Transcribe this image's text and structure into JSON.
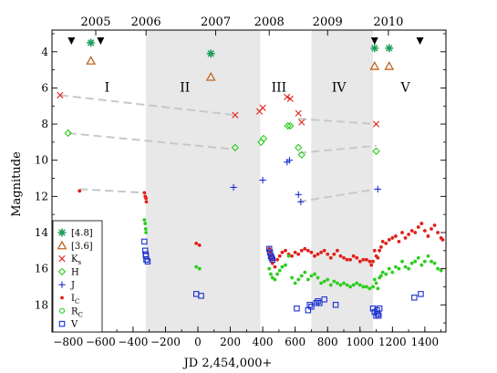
{
  "chart_data": {
    "type": "scatter",
    "xlabel": "JD 2,454,000+",
    "ylabel": "Magnitude",
    "xlim": [
      -900,
      1530
    ],
    "ylim": [
      19.5,
      2.8
    ],
    "y_inverted": true,
    "x_ticks": [
      -800,
      -600,
      -400,
      -200,
      0,
      200,
      400,
      600,
      800,
      1000,
      1200,
      1400
    ],
    "y_ticks": [
      4,
      6,
      8,
      10,
      12,
      14,
      16,
      18
    ],
    "top_axis": {
      "labels": [
        "2005",
        "2006",
        "2007",
        "2008",
        "2009",
        "2010"
      ],
      "positions": [
        -630,
        -320,
        110,
        440,
        800,
        1175
      ]
    },
    "shaded_intervals": [
      [
        -320,
        385
      ],
      [
        700,
        1080
      ]
    ],
    "period_labels": [
      {
        "text": "I",
        "x": -560,
        "y": 6.2
      },
      {
        "text": "II",
        "x": -80,
        "y": 6.2
      },
      {
        "text": "III",
        "x": 500,
        "y": 6.2
      },
      {
        "text": "IV",
        "x": 870,
        "y": 6.2
      },
      {
        "text": "V",
        "x": 1280,
        "y": 6.2
      }
    ],
    "markers_down": [
      -780,
      -600,
      1090,
      1370
    ],
    "trend_segments": [
      {
        "series": "Ks",
        "x": [
          -850,
          230
        ],
        "y": [
          6.4,
          7.5
        ]
      },
      {
        "series": "Ks",
        "x": [
          620,
          1100
        ],
        "y": [
          7.7,
          8.0
        ]
      },
      {
        "series": "H",
        "x": [
          -800,
          230
        ],
        "y": [
          8.5,
          9.4
        ]
      },
      {
        "series": "H",
        "x": [
          620,
          1100
        ],
        "y": [
          9.6,
          9.2
        ]
      },
      {
        "series": "J",
        "x": [
          -730,
          -320
        ],
        "y": [
          11.6,
          11.8
        ]
      },
      {
        "series": "J",
        "x": [
          620,
          1100
        ],
        "y": [
          12.3,
          11.6
        ]
      }
    ],
    "legend": {
      "placement": "bottom-left",
      "entries": [
        {
          "series": "m48",
          "label": "[4.8]"
        },
        {
          "series": "m36",
          "label": "[3.6]"
        },
        {
          "series": "Ks",
          "label": "K",
          "sub": "s"
        },
        {
          "series": "H",
          "label": "H"
        },
        {
          "series": "J",
          "label": "J"
        },
        {
          "series": "Ic",
          "label": "I",
          "sub": "C"
        },
        {
          "series": "Rc",
          "label": "R",
          "sub": "C"
        },
        {
          "series": "V",
          "label": "V"
        }
      ]
    },
    "series": [
      {
        "key": "m48",
        "marker": "asterisk",
        "color": "#1a9e5b",
        "x": [
          -660,
          80,
          1090,
          1180
        ],
        "y": [
          3.5,
          4.1,
          3.8,
          3.8
        ]
      },
      {
        "key": "m36",
        "marker": "triangle",
        "color": "#c0651e",
        "x": [
          -660,
          80,
          1090,
          1180
        ],
        "y": [
          4.5,
          5.4,
          4.8,
          4.8
        ]
      },
      {
        "key": "Ks",
        "marker": "x",
        "color": "#e0201a",
        "x": [
          -850,
          230,
          380,
          400,
          550,
          570,
          620,
          640,
          1100
        ],
        "y": [
          6.4,
          7.5,
          7.3,
          7.1,
          6.5,
          6.6,
          7.4,
          7.9,
          8.0
        ]
      },
      {
        "key": "H",
        "marker": "diamond",
        "color": "#2ccd1e",
        "x": [
          -800,
          230,
          390,
          405,
          555,
          570,
          620,
          640,
          1100
        ],
        "y": [
          8.5,
          9.3,
          9.0,
          8.8,
          8.1,
          8.1,
          9.3,
          9.7,
          9.5
        ]
      },
      {
        "key": "J",
        "marker": "plus",
        "color": "#1a2fd0",
        "x": [
          220,
          400,
          550,
          565,
          620,
          635,
          1110
        ],
        "y": [
          11.5,
          11.1,
          10.1,
          10.0,
          11.9,
          12.3,
          11.6
        ]
      },
      {
        "key": "Ic",
        "marker": "dot",
        "color": "#e0201a",
        "x": [
          -730,
          -330,
          -325,
          -320,
          -318,
          -10,
          10,
          440,
          445,
          450,
          455,
          460,
          475,
          490,
          505,
          520,
          540,
          560,
          580,
          600,
          620,
          640,
          660,
          680,
          700,
          720,
          740,
          760,
          780,
          800,
          820,
          840,
          860,
          880,
          900,
          920,
          940,
          960,
          980,
          1000,
          1020,
          1040,
          1060,
          1070,
          1080,
          1090,
          1100,
          1110,
          1120,
          1130,
          1140,
          1160,
          1180,
          1200,
          1220,
          1240,
          1260,
          1280,
          1300,
          1320,
          1340,
          1360,
          1380,
          1400,
          1420,
          1440,
          1460,
          1480,
          1500,
          1510
        ],
        "y": [
          11.7,
          11.8,
          12.0,
          12.1,
          12.3,
          14.6,
          14.7,
          14.9,
          15.1,
          15.3,
          15.5,
          15.7,
          15.9,
          15.5,
          15.3,
          15.1,
          15.0,
          15.2,
          15.3,
          15.1,
          15.2,
          15.0,
          14.9,
          15.0,
          15.1,
          15.3,
          15.2,
          15.1,
          15.0,
          15.2,
          15.4,
          15.2,
          15.0,
          15.3,
          15.4,
          15.5,
          15.5,
          15.3,
          15.4,
          15.6,
          15.5,
          15.5,
          15.6,
          15.8,
          15.6,
          15.0,
          15.3,
          15.4,
          15.0,
          14.8,
          14.5,
          14.6,
          14.4,
          14.3,
          14.2,
          14.5,
          14.0,
          14.3,
          14.1,
          13.9,
          14.0,
          13.7,
          13.5,
          13.9,
          14.2,
          13.8,
          13.6,
          14.0,
          14.3,
          14.4
        ]
      },
      {
        "key": "Rc",
        "marker": "dot",
        "color": "#2ccd1e",
        "x": [
          -330,
          -325,
          -322,
          -320,
          -10,
          10,
          440,
          450,
          460,
          475,
          490,
          505,
          520,
          540,
          560,
          580,
          600,
          620,
          640,
          660,
          680,
          700,
          720,
          740,
          760,
          780,
          800,
          820,
          840,
          860,
          880,
          900,
          920,
          940,
          960,
          980,
          1000,
          1020,
          1040,
          1060,
          1080,
          1090,
          1100,
          1110,
          1120,
          1130,
          1140,
          1160,
          1180,
          1200,
          1220,
          1240,
          1260,
          1280,
          1300,
          1320,
          1340,
          1360,
          1380,
          1400,
          1420,
          1440,
          1460,
          1480,
          1500
        ],
        "y": [
          13.3,
          13.5,
          13.8,
          14.0,
          15.9,
          16.0,
          16.0,
          16.3,
          16.5,
          16.6,
          16.3,
          16.1,
          15.9,
          15.8,
          15.3,
          16.5,
          16.8,
          16.6,
          16.4,
          16.2,
          16.6,
          16.4,
          16.3,
          16.5,
          16.8,
          16.7,
          16.6,
          16.9,
          16.7,
          16.8,
          16.9,
          16.8,
          16.9,
          17.0,
          16.9,
          16.8,
          16.9,
          17.0,
          17.0,
          17.1,
          17.0,
          16.6,
          16.8,
          17.1,
          16.5,
          16.4,
          16.2,
          16.3,
          16.0,
          16.2,
          15.9,
          16.0,
          15.6,
          15.9,
          16.0,
          15.7,
          15.6,
          15.4,
          15.8,
          15.6,
          15.3,
          15.6,
          15.7,
          16.0,
          16.1
        ]
      },
      {
        "key": "V",
        "marker": "square",
        "color": "#1a2fd0",
        "x": [
          -330,
          -325,
          -322,
          -320,
          -318,
          -310,
          -10,
          20,
          440,
          445,
          450,
          455,
          460,
          610,
          680,
          690,
          700,
          730,
          740,
          750,
          780,
          850,
          1080,
          1090,
          1100,
          1105,
          1110,
          1115,
          1120,
          1335,
          1375
        ],
        "y": [
          14.5,
          15.0,
          15.2,
          15.3,
          15.5,
          15.6,
          17.4,
          17.5,
          14.9,
          15.1,
          15.3,
          15.4,
          15.5,
          18.2,
          18.3,
          18.0,
          18.1,
          17.9,
          17.8,
          17.9,
          17.7,
          18.0,
          18.2,
          18.4,
          18.6,
          18.3,
          18.5,
          18.6,
          18.2,
          17.6,
          17.4
        ]
      }
    ]
  }
}
